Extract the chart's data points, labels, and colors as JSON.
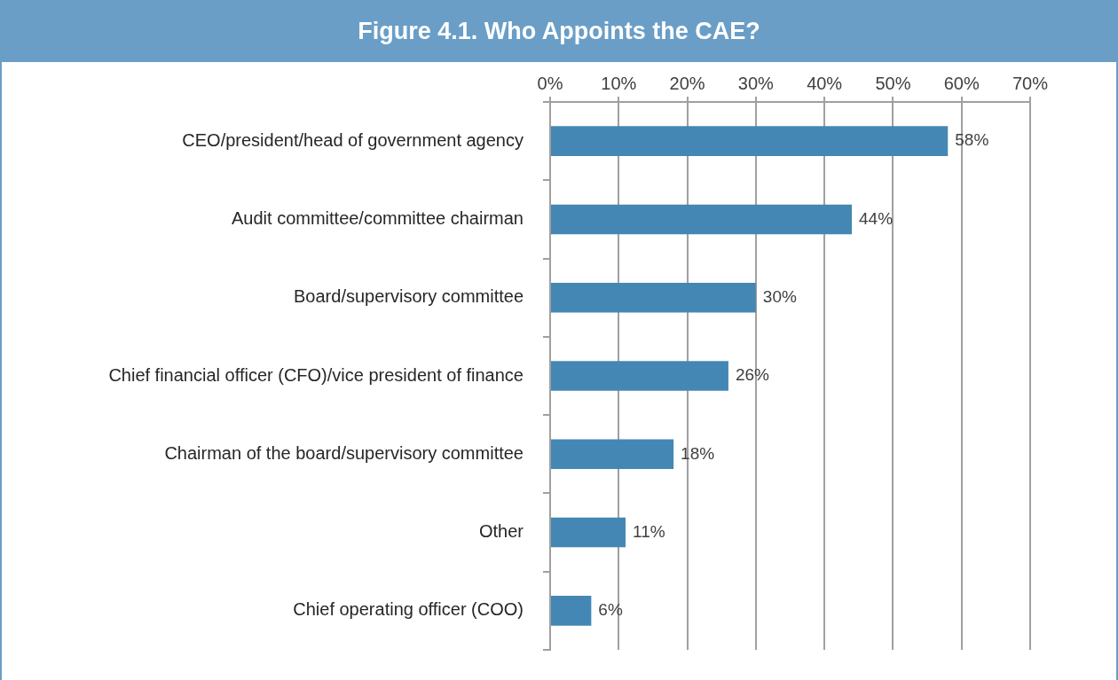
{
  "chart_data": {
    "type": "bar",
    "orientation": "horizontal",
    "title": "Figure 4.1. Who Appoints the CAE?",
    "categories": [
      "CEO/president/head of government agency",
      "Audit committee/committee chairman",
      "Board/supervisory committee",
      "Chief financial officer (CFO)/vice president of finance",
      "Chairman of the board/supervisory committee",
      "Other",
      "Chief operating officer (COO)"
    ],
    "values": [
      58,
      44,
      30,
      26,
      18,
      11,
      6
    ],
    "value_labels": [
      "58%",
      "44%",
      "30%",
      "26%",
      "18%",
      "11%",
      "6%"
    ],
    "color": "#4487b4",
    "xlim": [
      0,
      70
    ],
    "xticks": [
      {
        "value": 0,
        "label": "0%"
      },
      {
        "value": 10,
        "label": "10%"
      },
      {
        "value": 20,
        "label": "20%"
      },
      {
        "value": 30,
        "label": "30%"
      },
      {
        "value": 40,
        "label": "40%"
      },
      {
        "value": 50,
        "label": "50%"
      },
      {
        "value": 60,
        "label": "60%"
      },
      {
        "value": 70,
        "label": "70%"
      }
    ],
    "grid": "x",
    "legend": false
  }
}
